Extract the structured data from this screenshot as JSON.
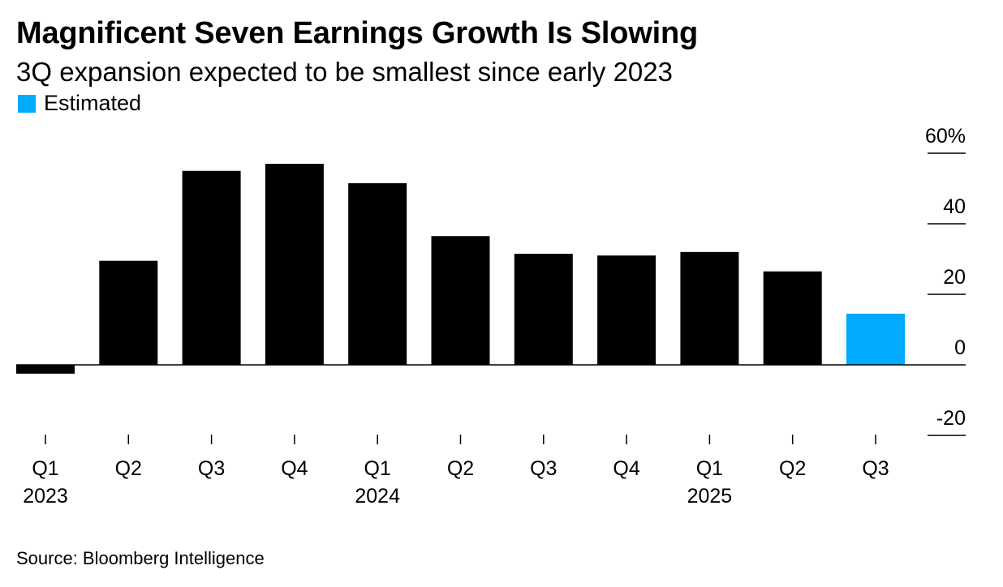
{
  "chart_data": {
    "type": "bar",
    "title": "Magnificent Seven Earnings Growth Is Slowing",
    "subtitle": "3Q expansion expected to be smallest since early 2023",
    "legend": [
      {
        "label": "Estimated",
        "color": "#00aaff"
      }
    ],
    "categories": [
      "Q1",
      "Q2",
      "Q3",
      "Q4",
      "Q1",
      "Q2",
      "Q3",
      "Q4",
      "Q1",
      "Q2",
      "Q3"
    ],
    "year_labels": [
      {
        "index": 0,
        "label": "2023"
      },
      {
        "index": 4,
        "label": "2024"
      },
      {
        "index": 8,
        "label": "2025"
      }
    ],
    "values": [
      -2.5,
      29.5,
      55,
      57,
      51.5,
      36.5,
      31.5,
      31,
      32,
      26.5,
      14.5
    ],
    "estimated": [
      false,
      false,
      false,
      false,
      false,
      false,
      false,
      false,
      false,
      false,
      true
    ],
    "bar_color": "#000000",
    "estimated_color": "#00aaff",
    "ylim": [
      -20,
      60
    ],
    "yticks": [
      {
        "value": 60,
        "label": "60%"
      },
      {
        "value": 40,
        "label": "40"
      },
      {
        "value": 20,
        "label": "20"
      },
      {
        "value": 0,
        "label": "0"
      },
      {
        "value": -20,
        "label": "-20"
      }
    ],
    "xlabel": "",
    "ylabel": "",
    "source": "Source: Bloomberg Intelligence"
  }
}
